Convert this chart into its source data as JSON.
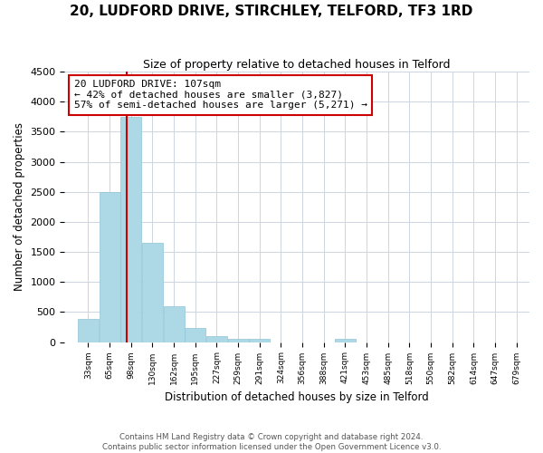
{
  "title": "20, LUDFORD DRIVE, STIRCHLEY, TELFORD, TF3 1RD",
  "subtitle": "Size of property relative to detached houses in Telford",
  "xlabel": "Distribution of detached houses by size in Telford",
  "ylabel": "Number of detached properties",
  "bar_labels": [
    "33sqm",
    "65sqm",
    "98sqm",
    "130sqm",
    "162sqm",
    "195sqm",
    "227sqm",
    "259sqm",
    "291sqm",
    "324sqm",
    "356sqm",
    "388sqm",
    "421sqm",
    "453sqm",
    "485sqm",
    "518sqm",
    "550sqm",
    "582sqm",
    "614sqm",
    "647sqm",
    "679sqm"
  ],
  "bar_values": [
    380,
    2500,
    3750,
    1650,
    600,
    240,
    100,
    55,
    50,
    0,
    0,
    0,
    50,
    0,
    0,
    0,
    0,
    0,
    0,
    0,
    0
  ],
  "bar_color": "#add8e6",
  "bar_edge_color": "#91c4d8",
  "annotation_line1": "20 LUDFORD DRIVE: 107sqm",
  "annotation_line2": "← 42% of detached houses are smaller (3,827)",
  "annotation_line3": "57% of semi-detached houses are larger (5,271) →",
  "annotation_box_color": "#ffffff",
  "annotation_box_edge": "#cc0000",
  "red_line_color": "#cc0000",
  "footer_line1": "Contains HM Land Registry data © Crown copyright and database right 2024.",
  "footer_line2": "Contains public sector information licensed under the Open Government Licence v3.0.",
  "ylim": [
    0,
    4500
  ],
  "yticks": [
    0,
    500,
    1000,
    1500,
    2000,
    2500,
    3000,
    3500,
    4000,
    4500
  ],
  "background_color": "#ffffff",
  "grid_color": "#cdd5e0"
}
